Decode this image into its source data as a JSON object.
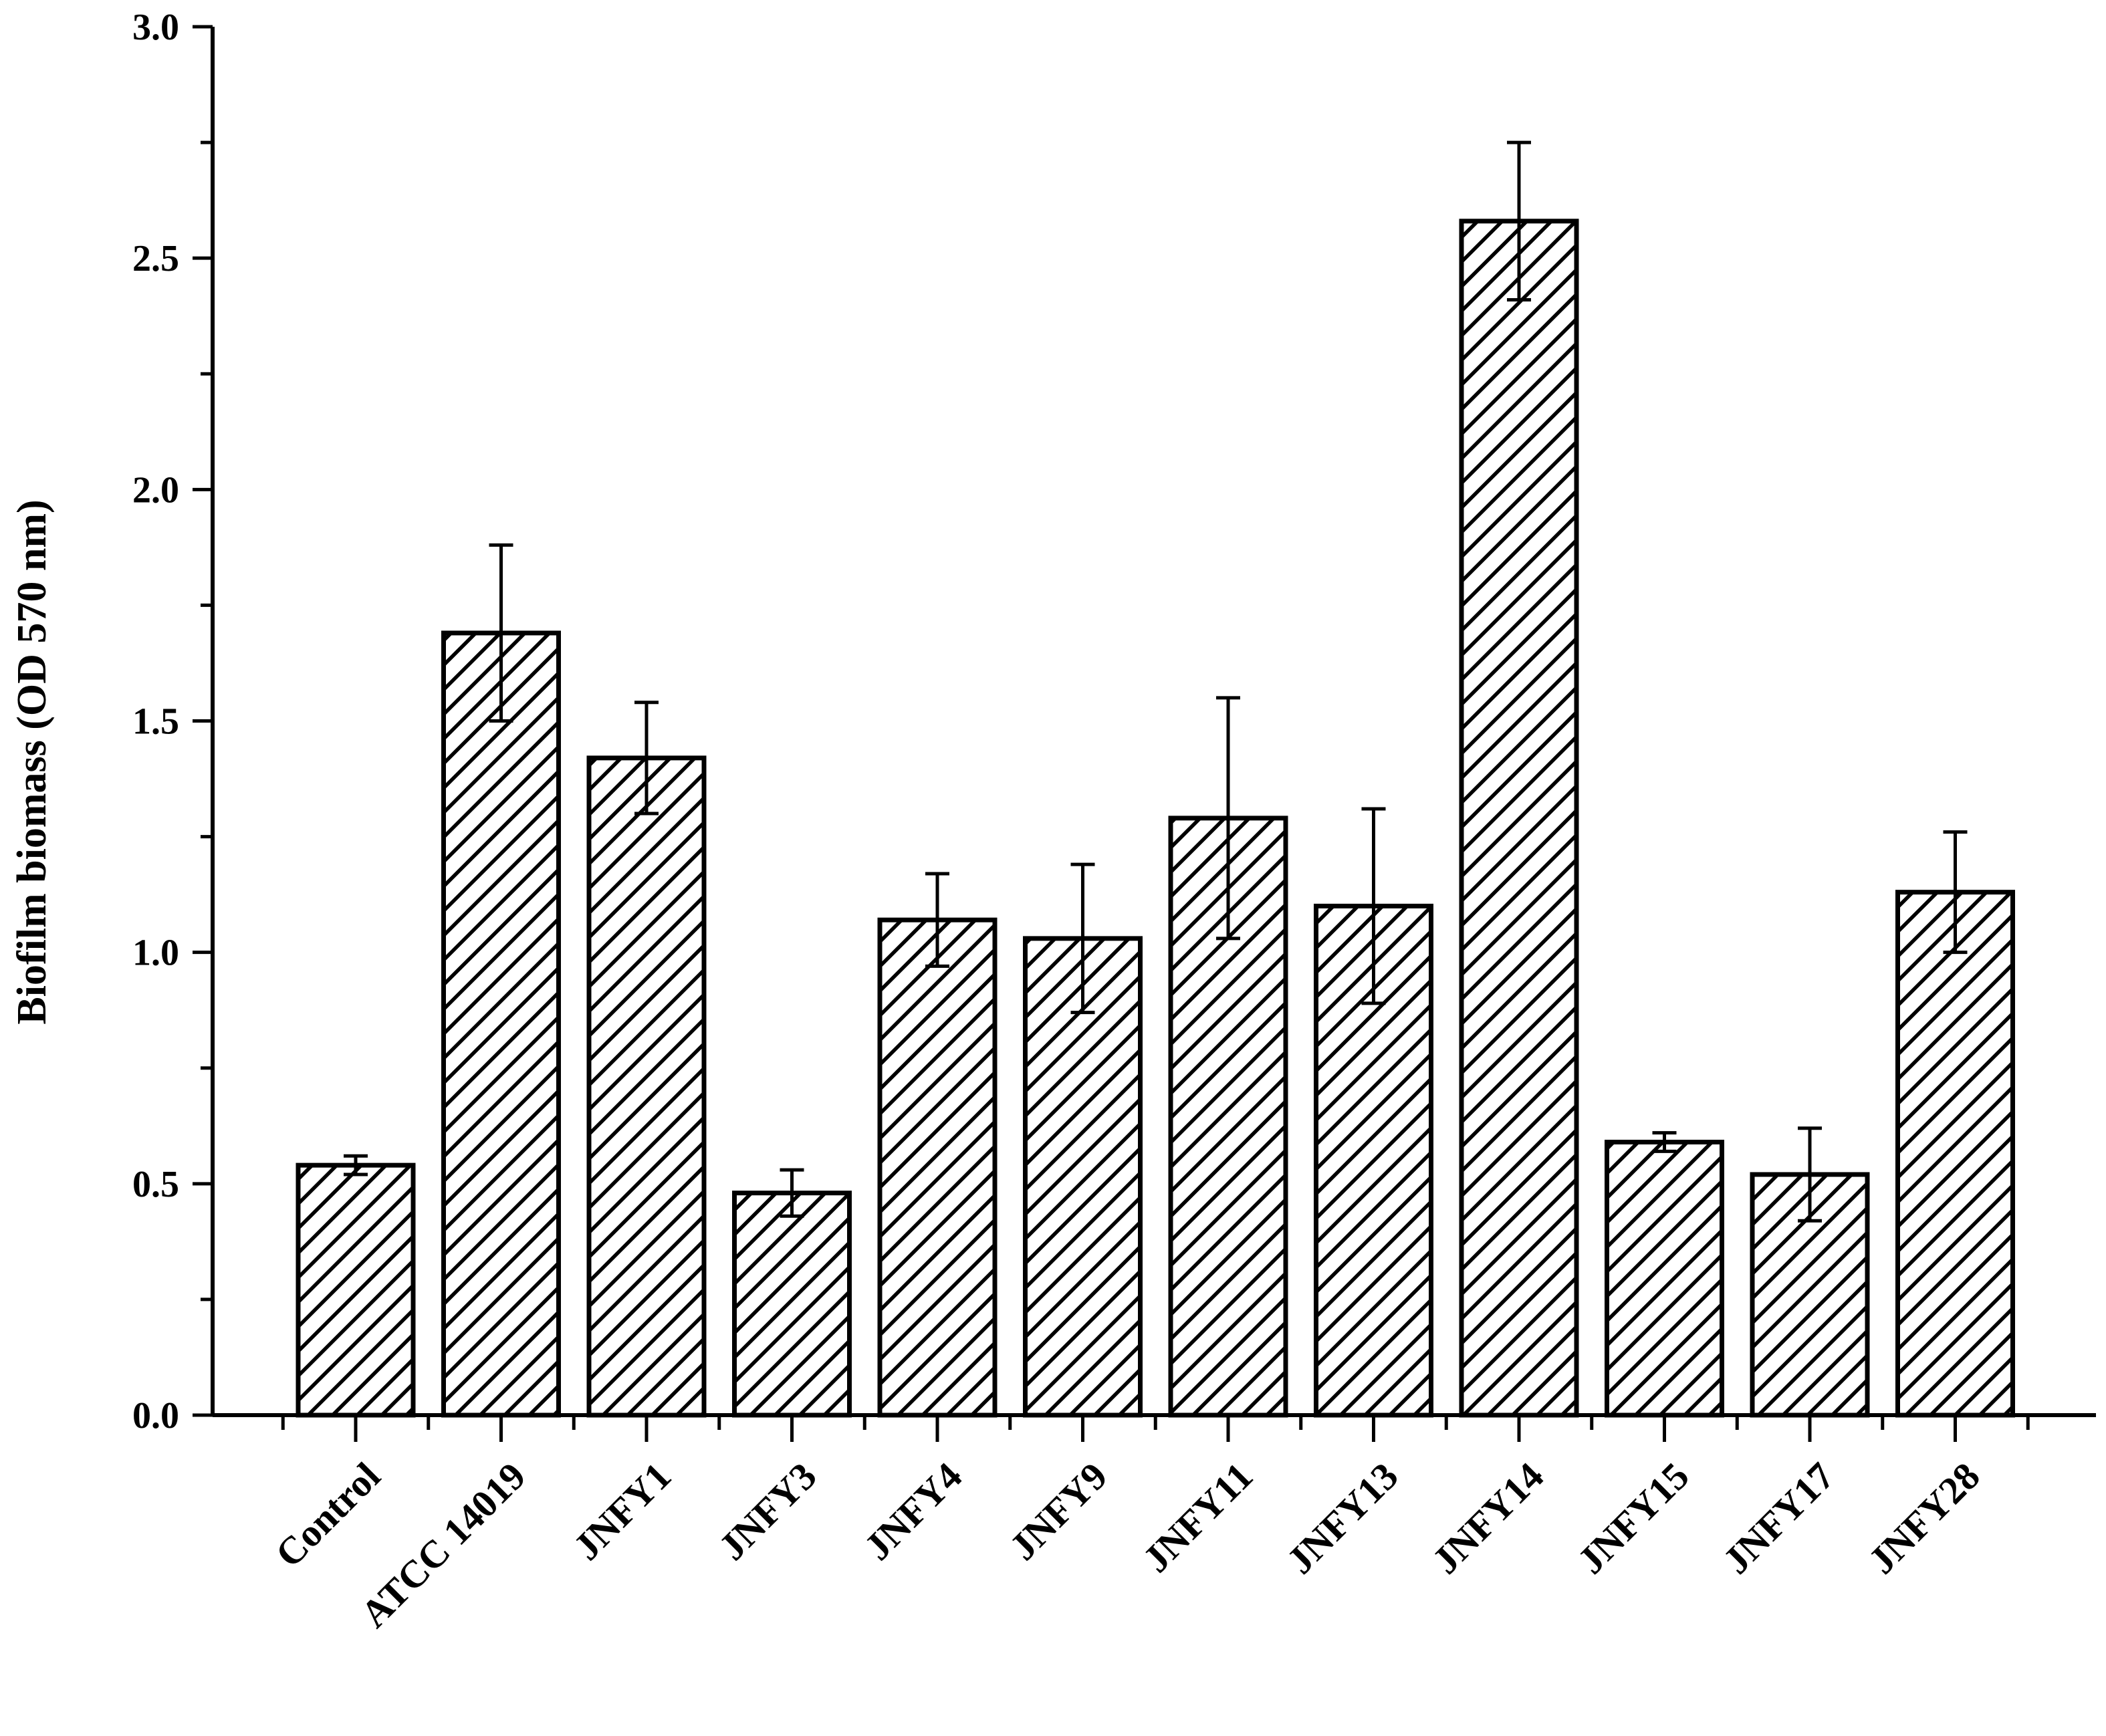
{
  "chart_data": {
    "type": "bar",
    "title": "",
    "xlabel": "",
    "ylabel": "Biofilm biomass (OD 570 nm)",
    "ylim": [
      0,
      3.0
    ],
    "yticks": [
      "0.0",
      "0.5",
      "1.0",
      "1.5",
      "2.0",
      "2.5",
      "3.0"
    ],
    "grid": false,
    "legend": "none",
    "categories": [
      "Control",
      "ATCC 14019",
      "JNFY1",
      "JNFY3",
      "JNFY4",
      "JNFY9",
      "JNFY11",
      "JNFY13",
      "JNFY14",
      "JNFY15",
      "JNFY17",
      "JNFY28"
    ],
    "values": [
      0.54,
      1.69,
      1.42,
      0.48,
      1.07,
      1.03,
      1.29,
      1.1,
      2.58,
      0.59,
      0.52,
      1.13
    ],
    "errors": [
      0.02,
      0.19,
      0.12,
      0.05,
      0.1,
      0.16,
      0.26,
      0.21,
      0.17,
      0.02,
      0.1,
      0.13
    ],
    "bar_fill": "hatched",
    "colors": {
      "stroke": "#000000",
      "background": "#ffffff"
    }
  }
}
